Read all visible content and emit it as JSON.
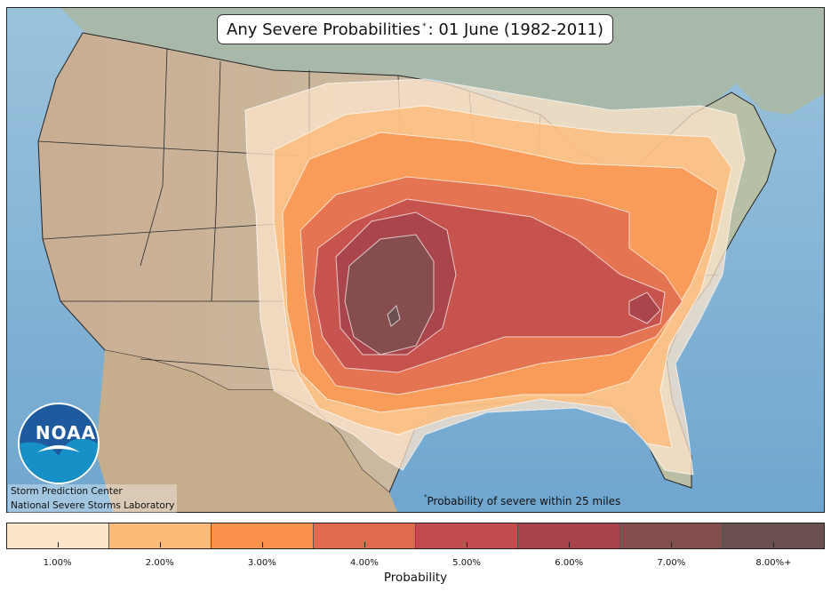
{
  "title": {
    "main": "Any Severe Probabilities",
    "marker": "*",
    "date": ": 01 June (1982-2011)"
  },
  "credits": {
    "line1": "Storm Prediction Center",
    "line2": "National Severe Storms Laboratory",
    "logo_text": "NOAA"
  },
  "footnote": {
    "marker": "*",
    "text": "Probability of severe within 25 miles"
  },
  "colorbar": {
    "label": "Probability",
    "levels": [
      {
        "label": "1.00%",
        "color": "#fde5cc"
      },
      {
        "label": "2.00%",
        "color": "#fcbb79"
      },
      {
        "label": "3.00%",
        "color": "#fa924d"
      },
      {
        "label": "4.00%",
        "color": "#e06a50"
      },
      {
        "label": "5.00%",
        "color": "#c24d4f"
      },
      {
        "label": "6.00%",
        "color": "#a7444b"
      },
      {
        "label": "7.00%",
        "color": "#834e4e"
      },
      {
        "label": "8.00%+",
        "color": "#6a504e"
      }
    ]
  },
  "map_colors": {
    "ocean": "#86b5d3",
    "land_west": "#cdb79b",
    "land_east": "#b9c0a9",
    "canada": "#9fb3a6"
  }
}
